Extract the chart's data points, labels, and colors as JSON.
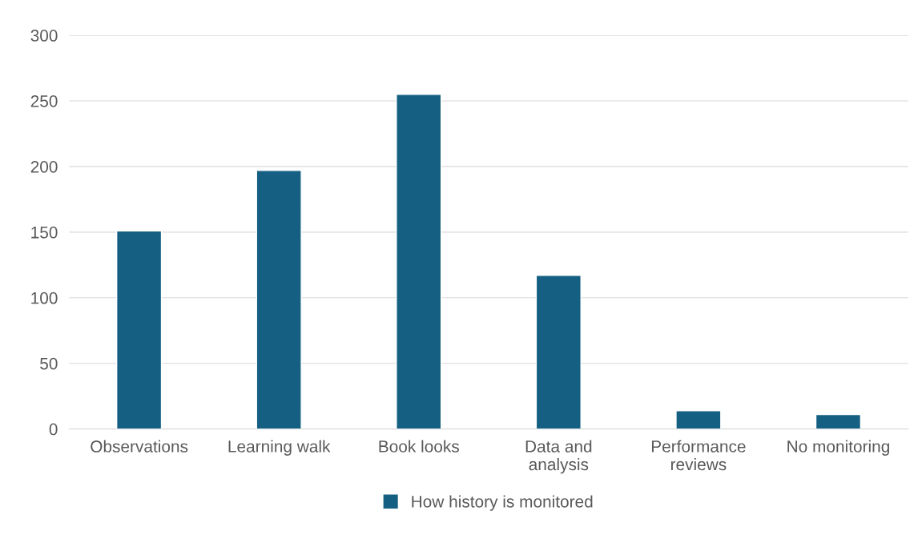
{
  "chart_data": {
    "type": "bar",
    "categories": [
      "Observations",
      "Learning walk",
      "Book looks",
      "Data and\nanalysis",
      "Performance\nreviews",
      "No monitoring"
    ],
    "series": [
      {
        "name": "How history is monitored",
        "color": "#156082",
        "values": [
          151,
          197,
          255,
          117,
          14,
          11
        ]
      }
    ],
    "ylim": [
      0,
      300
    ],
    "yticks": [
      0,
      50,
      100,
      150,
      200,
      250,
      300
    ],
    "grid": "y",
    "legend": "bottom"
  }
}
